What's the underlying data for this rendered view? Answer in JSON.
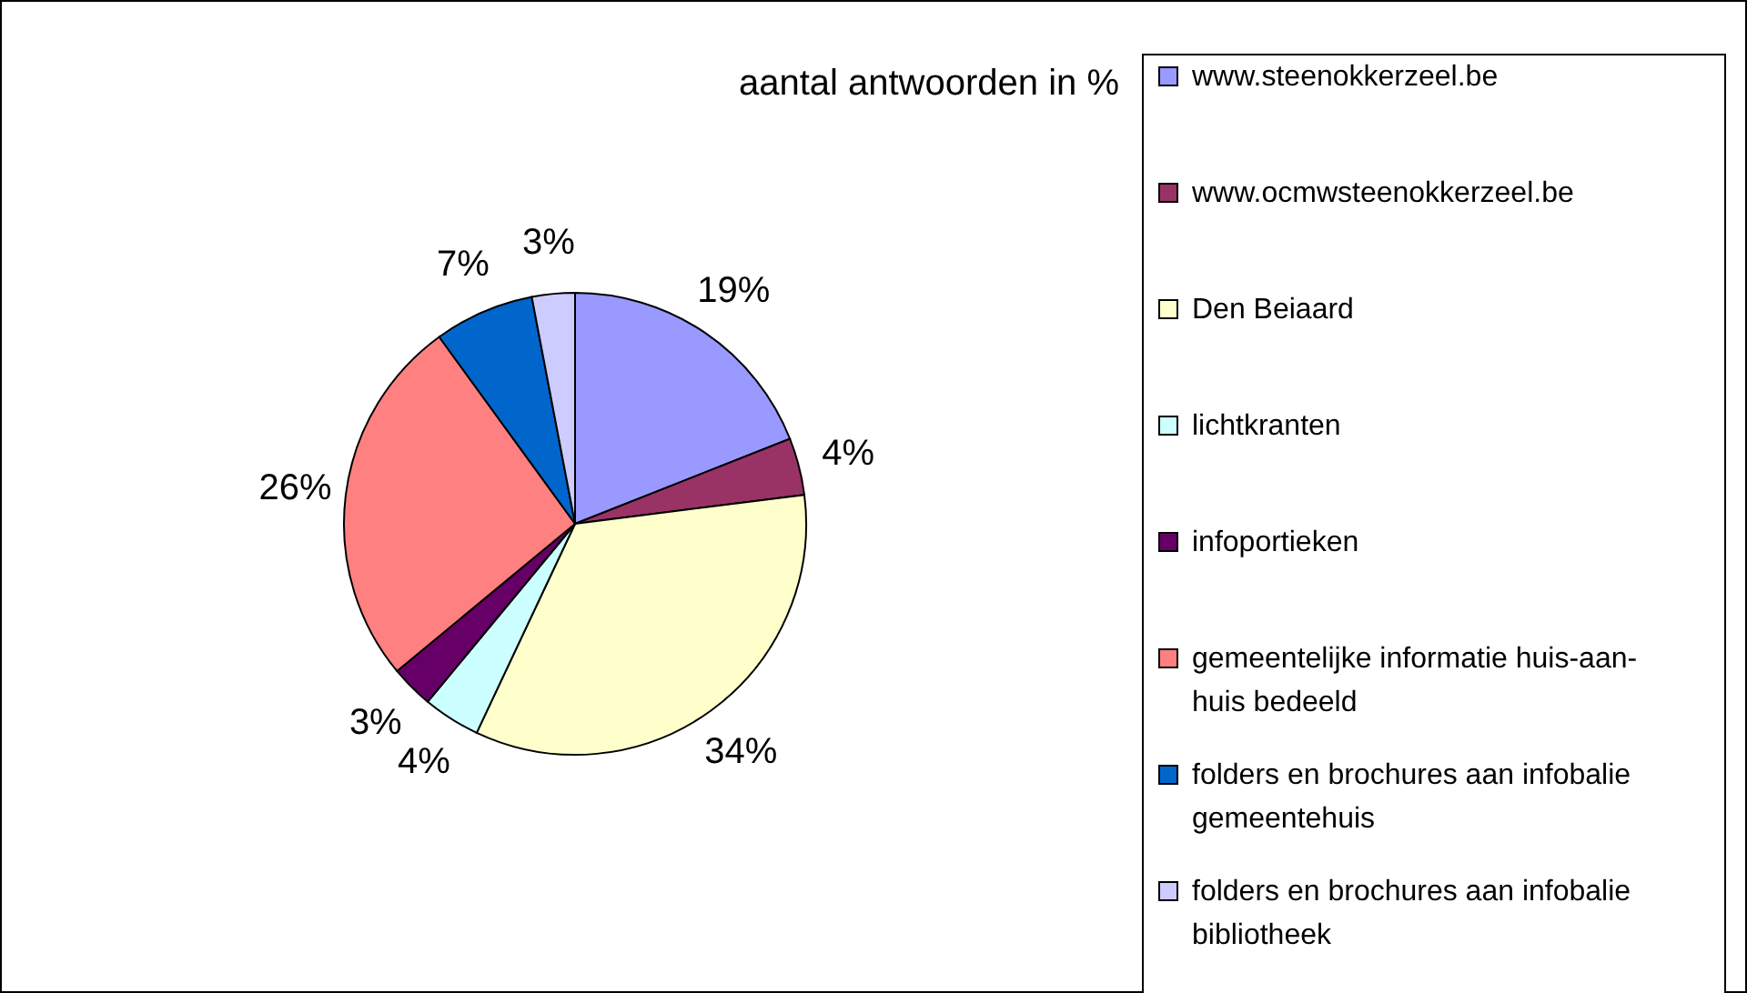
{
  "chart_data": {
    "type": "pie",
    "title": "aantal antwoorden in %",
    "categories": [
      "www.steenokkerzeel.be",
      "www.ocmwsteenokkerzeel.be",
      "Den Beiaard",
      "lichtkranten",
      "infoportieken",
      "gemeentelijke informatie huis-aan-huis bedeeld",
      "folders en brochures aan infobalie gemeentehuis",
      "folders en brochures aan infobalie bibliotheek"
    ],
    "values": [
      19,
      4,
      34,
      4,
      3,
      26,
      7,
      3
    ],
    "value_labels": [
      "19%",
      "4%",
      "34%",
      "4%",
      "3%",
      "26%",
      "7%",
      "3%"
    ],
    "colors": [
      "#9999ff",
      "#993366",
      "#ffffcc",
      "#ccffff",
      "#660066",
      "#ff8080",
      "#0066cc",
      "#ccccff"
    ],
    "legend": "right"
  }
}
